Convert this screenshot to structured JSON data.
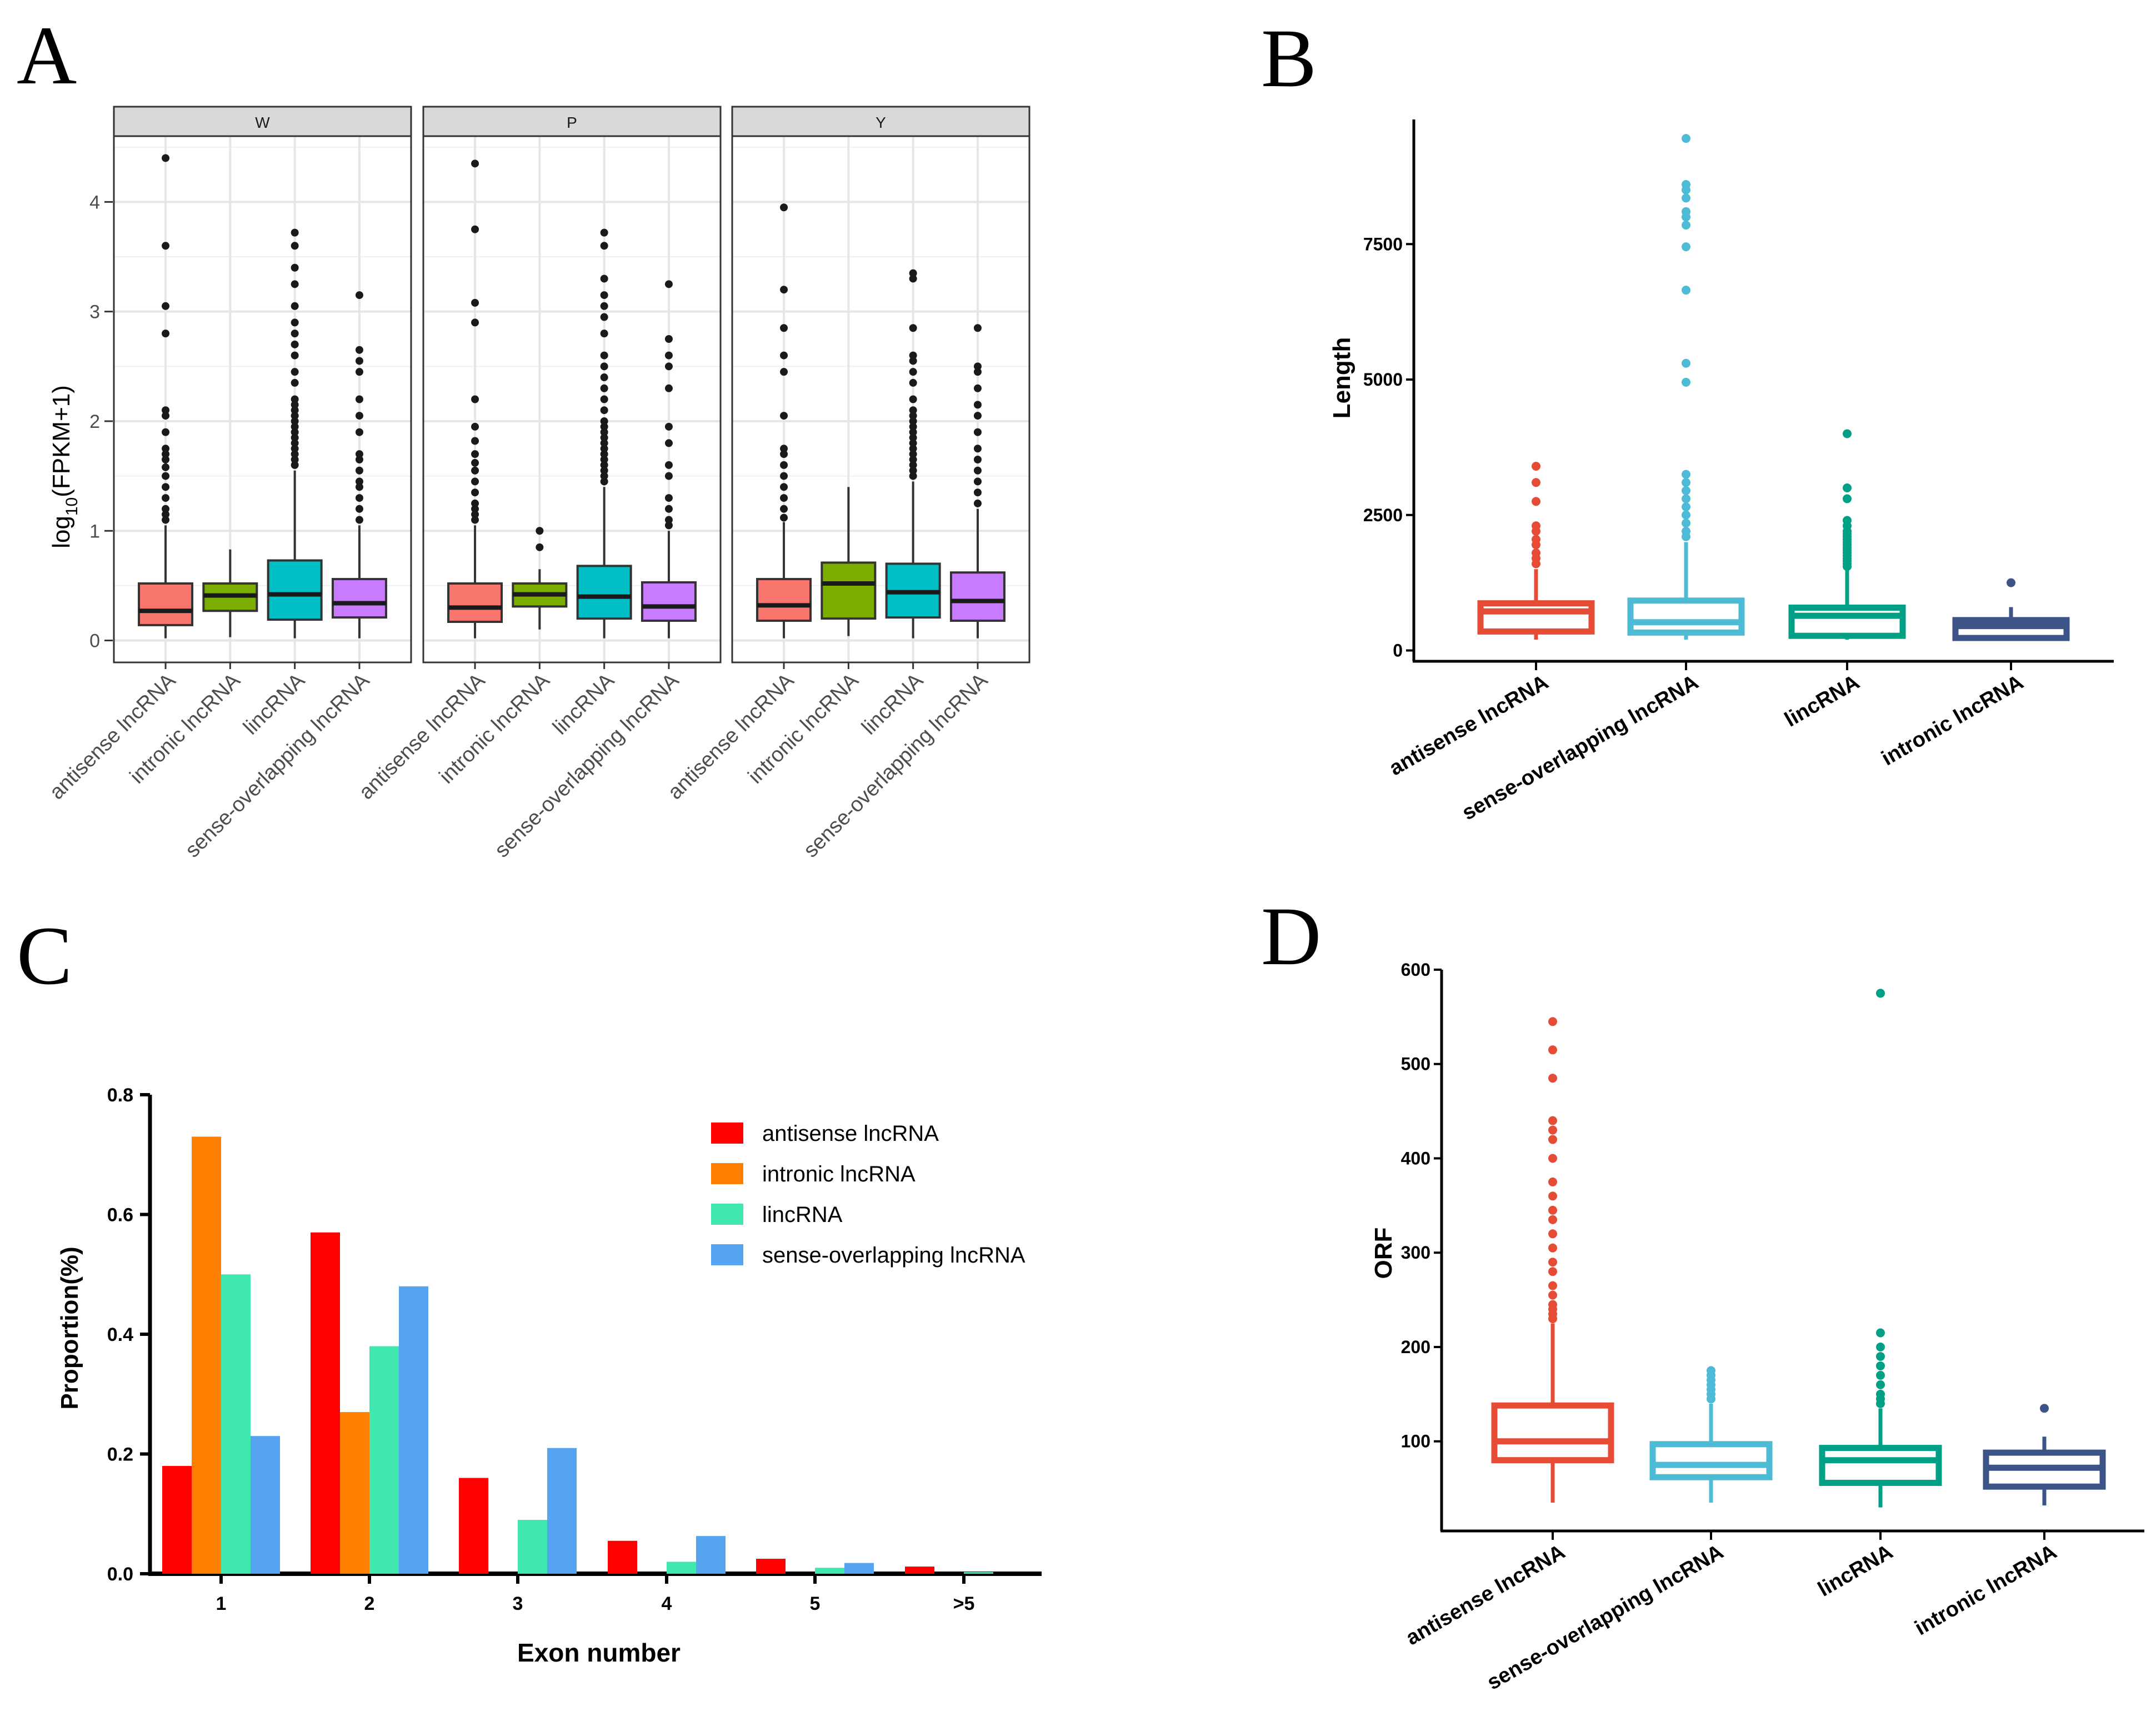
{
  "chart_data": [
    {
      "panel": "A",
      "type": "box",
      "ylabel_main": "log",
      "ylabel_sub": "10",
      "ylabel_tail": "(FPKM+1)",
      "ylim": [
        -0.2,
        4.6
      ],
      "yticks": [
        0,
        1,
        2,
        3,
        4
      ],
      "ytick_labels": [
        "0",
        "1",
        "2",
        "3",
        "4"
      ],
      "categories": [
        "antisense lncRNA",
        "intronic lncRNA",
        "lincRNA",
        "sense-overlapping lncRNA"
      ],
      "colors": [
        "#F8766D",
        "#7CAE00",
        "#00BFC4",
        "#C77CFF"
      ],
      "facets": [
        {
          "name": "W",
          "boxes": [
            {
              "min": 0.02,
              "q1": 0.14,
              "median": 0.27,
              "q3": 0.52,
              "max": 1.05,
              "outliers": [
                1.1,
                1.15,
                1.2,
                1.3,
                1.4,
                1.5,
                1.58,
                1.65,
                1.7,
                1.75,
                1.9,
                2.05,
                2.1,
                2.8,
                3.05,
                3.6,
                4.4
              ]
            },
            {
              "min": 0.03,
              "q1": 0.27,
              "median": 0.41,
              "q3": 0.52,
              "max": 0.83,
              "outliers": []
            },
            {
              "min": 0.02,
              "q1": 0.19,
              "median": 0.42,
              "q3": 0.73,
              "max": 1.55,
              "outliers": [
                1.6,
                1.65,
                1.7,
                1.75,
                1.8,
                1.85,
                1.9,
                1.95,
                2.0,
                2.05,
                2.1,
                2.15,
                2.2,
                2.35,
                2.45,
                2.6,
                2.7,
                2.8,
                2.9,
                3.05,
                3.25,
                3.4,
                3.6,
                3.72
              ]
            },
            {
              "min": 0.02,
              "q1": 0.21,
              "median": 0.34,
              "q3": 0.56,
              "max": 1.05,
              "outliers": [
                1.1,
                1.2,
                1.3,
                1.4,
                1.45,
                1.55,
                1.65,
                1.7,
                1.9,
                2.05,
                2.2,
                2.45,
                2.55,
                2.65,
                3.15
              ]
            }
          ]
        },
        {
          "name": "P",
          "boxes": [
            {
              "min": 0.02,
              "q1": 0.17,
              "median": 0.3,
              "q3": 0.52,
              "max": 1.05,
              "outliers": [
                1.1,
                1.15,
                1.2,
                1.25,
                1.35,
                1.45,
                1.55,
                1.62,
                1.7,
                1.82,
                1.95,
                2.2,
                2.9,
                3.08,
                3.75,
                4.35
              ]
            },
            {
              "min": 0.1,
              "q1": 0.31,
              "median": 0.42,
              "q3": 0.52,
              "max": 0.65,
              "outliers": [
                0.85,
                1.0
              ]
            },
            {
              "min": 0.02,
              "q1": 0.2,
              "median": 0.4,
              "q3": 0.68,
              "max": 1.4,
              "outliers": [
                1.45,
                1.5,
                1.55,
                1.6,
                1.65,
                1.7,
                1.75,
                1.8,
                1.85,
                1.9,
                1.95,
                2.0,
                2.1,
                2.2,
                2.3,
                2.4,
                2.5,
                2.6,
                2.8,
                2.95,
                3.05,
                3.15,
                3.3,
                3.6,
                3.72
              ]
            },
            {
              "min": 0.02,
              "q1": 0.18,
              "median": 0.31,
              "q3": 0.53,
              "max": 1.0,
              "outliers": [
                1.05,
                1.1,
                1.2,
                1.3,
                1.5,
                1.6,
                1.8,
                1.95,
                2.3,
                2.5,
                2.6,
                2.75,
                3.25
              ]
            }
          ]
        },
        {
          "name": "Y",
          "boxes": [
            {
              "min": 0.02,
              "q1": 0.18,
              "median": 0.32,
              "q3": 0.56,
              "max": 1.08,
              "outliers": [
                1.12,
                1.2,
                1.3,
                1.4,
                1.5,
                1.6,
                1.7,
                1.75,
                2.05,
                2.45,
                2.6,
                2.85,
                3.2,
                3.95
              ]
            },
            {
              "min": 0.04,
              "q1": 0.2,
              "median": 0.52,
              "q3": 0.71,
              "max": 1.4,
              "outliers": []
            },
            {
              "min": 0.02,
              "q1": 0.21,
              "median": 0.44,
              "q3": 0.7,
              "max": 1.45,
              "outliers": [
                1.5,
                1.55,
                1.6,
                1.65,
                1.7,
                1.75,
                1.8,
                1.85,
                1.9,
                1.95,
                2.0,
                2.05,
                2.1,
                2.2,
                2.35,
                2.45,
                2.55,
                2.6,
                2.85,
                3.3,
                3.35
              ]
            },
            {
              "min": 0.02,
              "q1": 0.18,
              "median": 0.36,
              "q3": 0.62,
              "max": 1.2,
              "outliers": [
                1.25,
                1.35,
                1.45,
                1.55,
                1.65,
                1.75,
                1.9,
                2.05,
                2.15,
                2.3,
                2.45,
                2.5,
                2.85
              ]
            }
          ]
        }
      ]
    },
    {
      "panel": "B",
      "type": "box",
      "ylabel": "Length",
      "ylim": [
        -200,
        9800
      ],
      "yticks": [
        0,
        2500,
        5000,
        7500
      ],
      "ytick_labels": [
        "0",
        "2500",
        "5000",
        "7500"
      ],
      "categories": [
        "antisense lncRNA",
        "sense-overlapping lncRNA",
        "lincRNA",
        "intronic lncRNA"
      ],
      "colors": [
        "#E64B35",
        "#4DBBD5",
        "#00A087",
        "#3C5488"
      ],
      "boxes": [
        {
          "min": 200,
          "q1": 350,
          "median": 720,
          "q3": 870,
          "max": 1500,
          "outliers": [
            1600,
            1700,
            1800,
            1950,
            2050,
            2200,
            2300,
            2750,
            3100,
            3400
          ]
        },
        {
          "min": 200,
          "q1": 330,
          "median": 520,
          "q3": 920,
          "max": 2000,
          "outliers": [
            2100,
            2200,
            2350,
            2500,
            2650,
            2800,
            2950,
            3100,
            3250,
            4950,
            5300,
            6650,
            7450,
            7850,
            8000,
            8100,
            8350,
            8500,
            8600,
            9450
          ]
        },
        {
          "min": 200,
          "q1": 270,
          "median": 640,
          "q3": 790,
          "max": 1500,
          "outliers": [
            1550,
            1600,
            1650,
            1700,
            1750,
            1800,
            1850,
            1900,
            1950,
            2000,
            2050,
            2100,
            2150,
            2200,
            2300,
            2400,
            2800,
            3000,
            4000
          ]
        },
        {
          "min": 200,
          "q1": 230,
          "median": 450,
          "q3": 560,
          "max": 800,
          "outliers": [
            1250
          ]
        }
      ]
    },
    {
      "panel": "C",
      "type": "bar",
      "xlabel": "Exon number",
      "ylabel": "Proportion(%)",
      "ylim": [
        0,
        0.8
      ],
      "yticks": [
        0,
        0.2,
        0.4,
        0.6,
        0.8
      ],
      "ytick_labels": [
        "0.0",
        "0.2",
        "0.4",
        "0.6",
        "0.8"
      ],
      "categories": [
        "1",
        "2",
        "3",
        "4",
        "5",
        ">5"
      ],
      "series": [
        {
          "name": "antisense lncRNA",
          "color": "#FF0000",
          "values": [
            0.18,
            0.57,
            0.16,
            0.055,
            0.025,
            0.012
          ]
        },
        {
          "name": "intronic lncRNA",
          "color": "#FF7F00",
          "values": [
            0.73,
            0.27,
            0.0,
            0.0,
            0.0,
            0.0
          ]
        },
        {
          "name": "lincRNA",
          "color": "#40E8B0",
          "values": [
            0.5,
            0.38,
            0.09,
            0.02,
            0.01,
            0.003
          ]
        },
        {
          "name": "sense-overlapping lncRNA",
          "color": "#56A3F2",
          "values": [
            0.23,
            0.48,
            0.21,
            0.063,
            0.018,
            0.0
          ]
        }
      ]
    },
    {
      "panel": "D",
      "type": "box",
      "ylabel": "ORF",
      "ylim": [
        5,
        600
      ],
      "yticks": [
        100,
        200,
        300,
        400,
        500,
        600
      ],
      "ytick_labels": [
        "100",
        "200",
        "300",
        "400",
        "500",
        "600"
      ],
      "categories": [
        "antisense lncRNA",
        "sense-overlapping lncRNA",
        "lincRNA",
        "intronic lncRNA"
      ],
      "colors": [
        "#E64B35",
        "#4DBBD5",
        "#00A087",
        "#3C5488"
      ],
      "boxes": [
        {
          "min": 35,
          "q1": 80,
          "median": 100,
          "q3": 138,
          "max": 225,
          "outliers": [
            230,
            235,
            240,
            245,
            255,
            265,
            280,
            290,
            305,
            320,
            335,
            345,
            360,
            375,
            400,
            420,
            430,
            440,
            485,
            515,
            545
          ]
        },
        {
          "min": 35,
          "q1": 62,
          "median": 75,
          "q3": 97,
          "max": 140,
          "outliers": [
            145,
            150,
            155,
            160,
            165,
            170,
            175
          ]
        },
        {
          "min": 30,
          "q1": 56,
          "median": 80,
          "q3": 93,
          "max": 135,
          "outliers": [
            140,
            145,
            150,
            160,
            170,
            180,
            190,
            200,
            215,
            575
          ]
        },
        {
          "min": 32,
          "q1": 52,
          "median": 72,
          "q3": 88,
          "max": 105,
          "outliers": [
            135
          ]
        }
      ]
    }
  ],
  "panel_labels": [
    "A",
    "B",
    "C",
    "D"
  ]
}
